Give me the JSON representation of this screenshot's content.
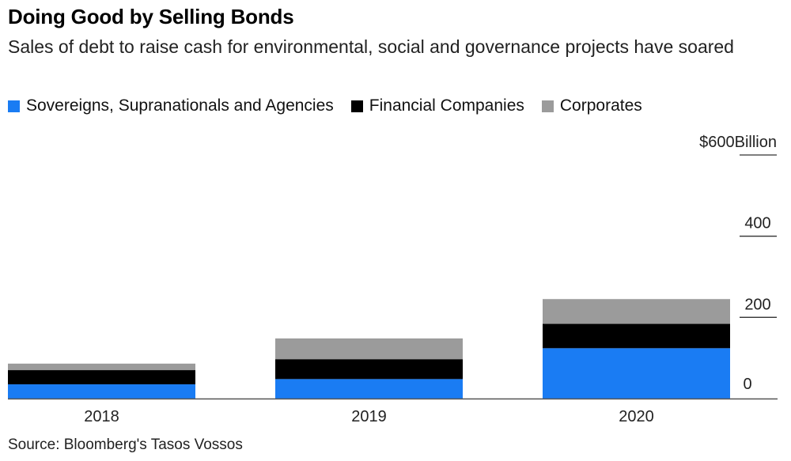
{
  "header": {
    "title": "Doing Good by Selling Bonds",
    "subtitle": "Sales of debt to raise cash for environmental, social and governance projects have soared"
  },
  "legend": [
    {
      "label": "Sovereigns, Supranationals and Agencies",
      "color": "#1a7cf3"
    },
    {
      "label": "Financial Companies",
      "color": "#000000"
    },
    {
      "label": "Corporates",
      "color": "#9b9b9b"
    }
  ],
  "source": "Source: Bloomberg's Tasos Vossos",
  "chart_data": {
    "type": "bar",
    "stacked": true,
    "categories": [
      "2018",
      "2019",
      "2020"
    ],
    "series": [
      {
        "name": "Sovereigns, Supranationals and Agencies",
        "color": "#1a7cf3",
        "values": [
          35,
          48,
          124
        ]
      },
      {
        "name": "Financial Companies",
        "color": "#000000",
        "values": [
          35,
          49,
          60
        ]
      },
      {
        "name": "Corporates",
        "color": "#9b9b9b",
        "values": [
          16,
          51,
          61
        ]
      }
    ],
    "yunit": "$",
    "yunit_suffix": "Billion",
    "yticks": [
      0,
      200,
      400,
      600
    ],
    "ylim": [
      0,
      600
    ],
    "axis_side": "right",
    "grid": false
  }
}
